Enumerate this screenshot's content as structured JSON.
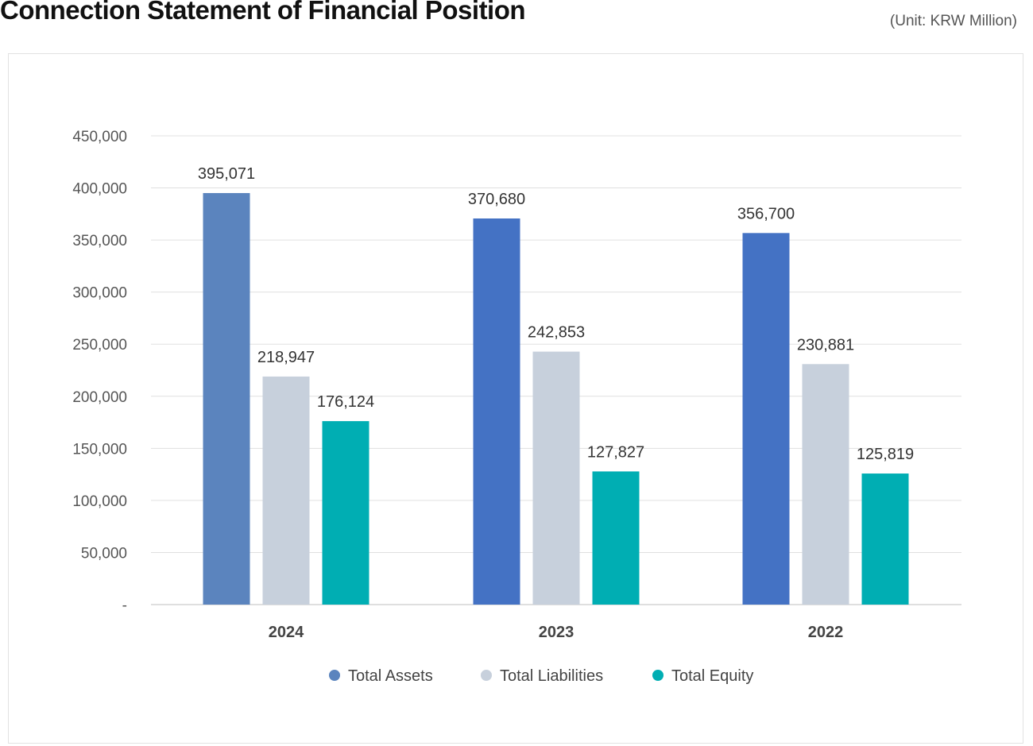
{
  "page": {
    "title": "Connection Statement of Financial Position",
    "unit": "(Unit: KRW Million)"
  },
  "chart_data": {
    "type": "bar",
    "categories": [
      "2024",
      "2023",
      "2022"
    ],
    "series": [
      {
        "name": "Total Assets",
        "values": [
          395071,
          370680,
          356700
        ],
        "color": "#4472C4",
        "highlight_color": "#5B84BE"
      },
      {
        "name": "Total Liabilities",
        "values": [
          218947,
          242853,
          230881
        ],
        "color": "#C7D0DC"
      },
      {
        "name": "Total Equity",
        "values": [
          176124,
          127827,
          125819
        ],
        "color": "#00AEB3"
      }
    ],
    "data_labels": [
      [
        "395,071",
        "370,680",
        "356,700"
      ],
      [
        "218,947",
        "242,853",
        "230,881"
      ],
      [
        "176,124",
        "127,827",
        "125,819"
      ]
    ],
    "yticks": [
      0,
      50000,
      100000,
      150000,
      200000,
      250000,
      300000,
      350000,
      400000,
      450000
    ],
    "ytick_labels": [
      "-",
      "50,000",
      "100,000",
      "150,000",
      "200,000",
      "250,000",
      "300,000",
      "350,000",
      "400,000",
      "450,000"
    ],
    "ylim": [
      0,
      450000
    ],
    "grid": true,
    "legend_position": "bottom"
  }
}
